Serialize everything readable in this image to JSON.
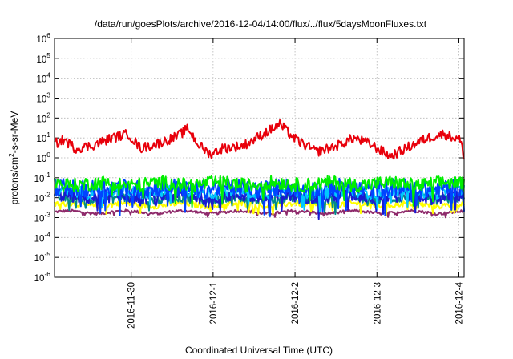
{
  "chart_data": {
    "type": "line",
    "title": "/data/run/goesPlots/archive/2016-12-04/14:00/flux/../flux/5daysMoonFluxes.txt",
    "xlabel": "Coordinated Universal Time (UTC)",
    "ylabel": {
      "prefix": "protons/cm",
      "sup": "2",
      "suffix": "-s-sr-MeV"
    },
    "yscale": "log",
    "ylim": [
      1e-06,
      1000000.0
    ],
    "xlim_days": [
      0.0,
      5.0
    ],
    "grid": true,
    "xticks": [
      {
        "label": "2016-11-30",
        "day": 0.936
      },
      {
        "label": "2016-12-1",
        "day": 1.936
      },
      {
        "label": "2016-12-2",
        "day": 2.936
      },
      {
        "label": "2016-12-3",
        "day": 3.936
      },
      {
        "label": "2016-12-4",
        "day": 4.936
      }
    ],
    "yticks": [
      {
        "base": "10",
        "exp": "6"
      },
      {
        "base": "10",
        "exp": "5"
      },
      {
        "base": "10",
        "exp": "4"
      },
      {
        "base": "10",
        "exp": "3"
      },
      {
        "base": "10",
        "exp": "2"
      },
      {
        "base": "10",
        "exp": "1"
      },
      {
        "base": "10",
        "exp": "0"
      },
      {
        "base": "10",
        "exp": "-1"
      },
      {
        "base": "10",
        "exp": "-2"
      },
      {
        "base": "10",
        "exp": "-3"
      },
      {
        "base": "10",
        "exp": "-4"
      },
      {
        "base": "10",
        "exp": "-5"
      },
      {
        "base": "10",
        "exp": "-6"
      }
    ],
    "series": [
      {
        "color": "#e8000b",
        "base": 5,
        "noise": 0.25,
        "x": [
          0.0,
          0.12,
          0.25,
          0.45,
          0.7,
          0.9,
          1.05,
          1.25,
          1.5,
          1.63,
          1.75,
          1.9,
          2.05,
          2.3,
          2.5,
          2.75,
          2.95,
          3.2,
          3.45,
          3.65,
          3.85,
          4.1,
          4.35,
          4.55,
          4.75,
          4.95,
          5.0
        ],
        "y": [
          5,
          8,
          3,
          4,
          10,
          16,
          3,
          5,
          12,
          30,
          5,
          1.5,
          3,
          4,
          12,
          48,
          8,
          2,
          4,
          10,
          5,
          1.2,
          4,
          10,
          16,
          8,
          1.2
        ]
      },
      {
        "color": "#00ee00",
        "base": 0.05,
        "noise": 0.35
      },
      {
        "color": "#0044ff",
        "base": 0.03,
        "noise": 0.45
      },
      {
        "color": "#00c8ff",
        "base": 0.02,
        "noise": 0.3
      },
      {
        "color": "#1a1ad0",
        "base": 0.012,
        "noise": 0.35
      },
      {
        "color": "#008a8a",
        "base": 0.009,
        "noise": 0.25
      },
      {
        "color": "#ffff00",
        "base": 0.0045,
        "noise": 0.15
      },
      {
        "color": "#8e2a6b",
        "base": 0.0019,
        "noise": 0.07
      }
    ]
  }
}
